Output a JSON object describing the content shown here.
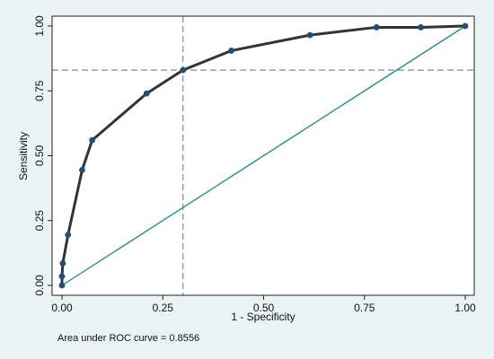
{
  "chart_data": {
    "type": "line",
    "xlabel": "1 - Specificity",
    "ylabel": "Sensitivity",
    "xlim": [
      0,
      1
    ],
    "ylim": [
      0,
      1
    ],
    "x_ticks": [
      "0.00",
      "0.25",
      "0.50",
      "0.75",
      "1.00"
    ],
    "y_ticks": [
      "0.00",
      "0.25",
      "0.50",
      "0.75",
      "1.00"
    ],
    "series": [
      {
        "points": [
          {
            "x": 0.0,
            "y": 0.0
          },
          {
            "x": 0.0,
            "y": 0.035
          },
          {
            "x": 0.002,
            "y": 0.085
          },
          {
            "x": 0.015,
            "y": 0.195
          },
          {
            "x": 0.05,
            "y": 0.445
          },
          {
            "x": 0.075,
            "y": 0.56
          },
          {
            "x": 0.21,
            "y": 0.74
          },
          {
            "x": 0.3,
            "y": 0.83
          },
          {
            "x": 0.42,
            "y": 0.905
          },
          {
            "x": 0.615,
            "y": 0.965
          },
          {
            "x": 0.78,
            "y": 0.995
          },
          {
            "x": 0.89,
            "y": 0.995
          },
          {
            "x": 1.0,
            "y": 1.0
          }
        ],
        "color": "#333333",
        "marker_color": "#1f4e79"
      }
    ],
    "reference_line": {
      "from": [
        0,
        0
      ],
      "to": [
        1,
        1
      ],
      "color": "#1a8a80"
    },
    "guide_lines": {
      "x": 0.3,
      "y": 0.83,
      "style": "dashed",
      "color": "#888888"
    },
    "grid": false,
    "annotation": "Area under ROC curve = 0.8556"
  }
}
